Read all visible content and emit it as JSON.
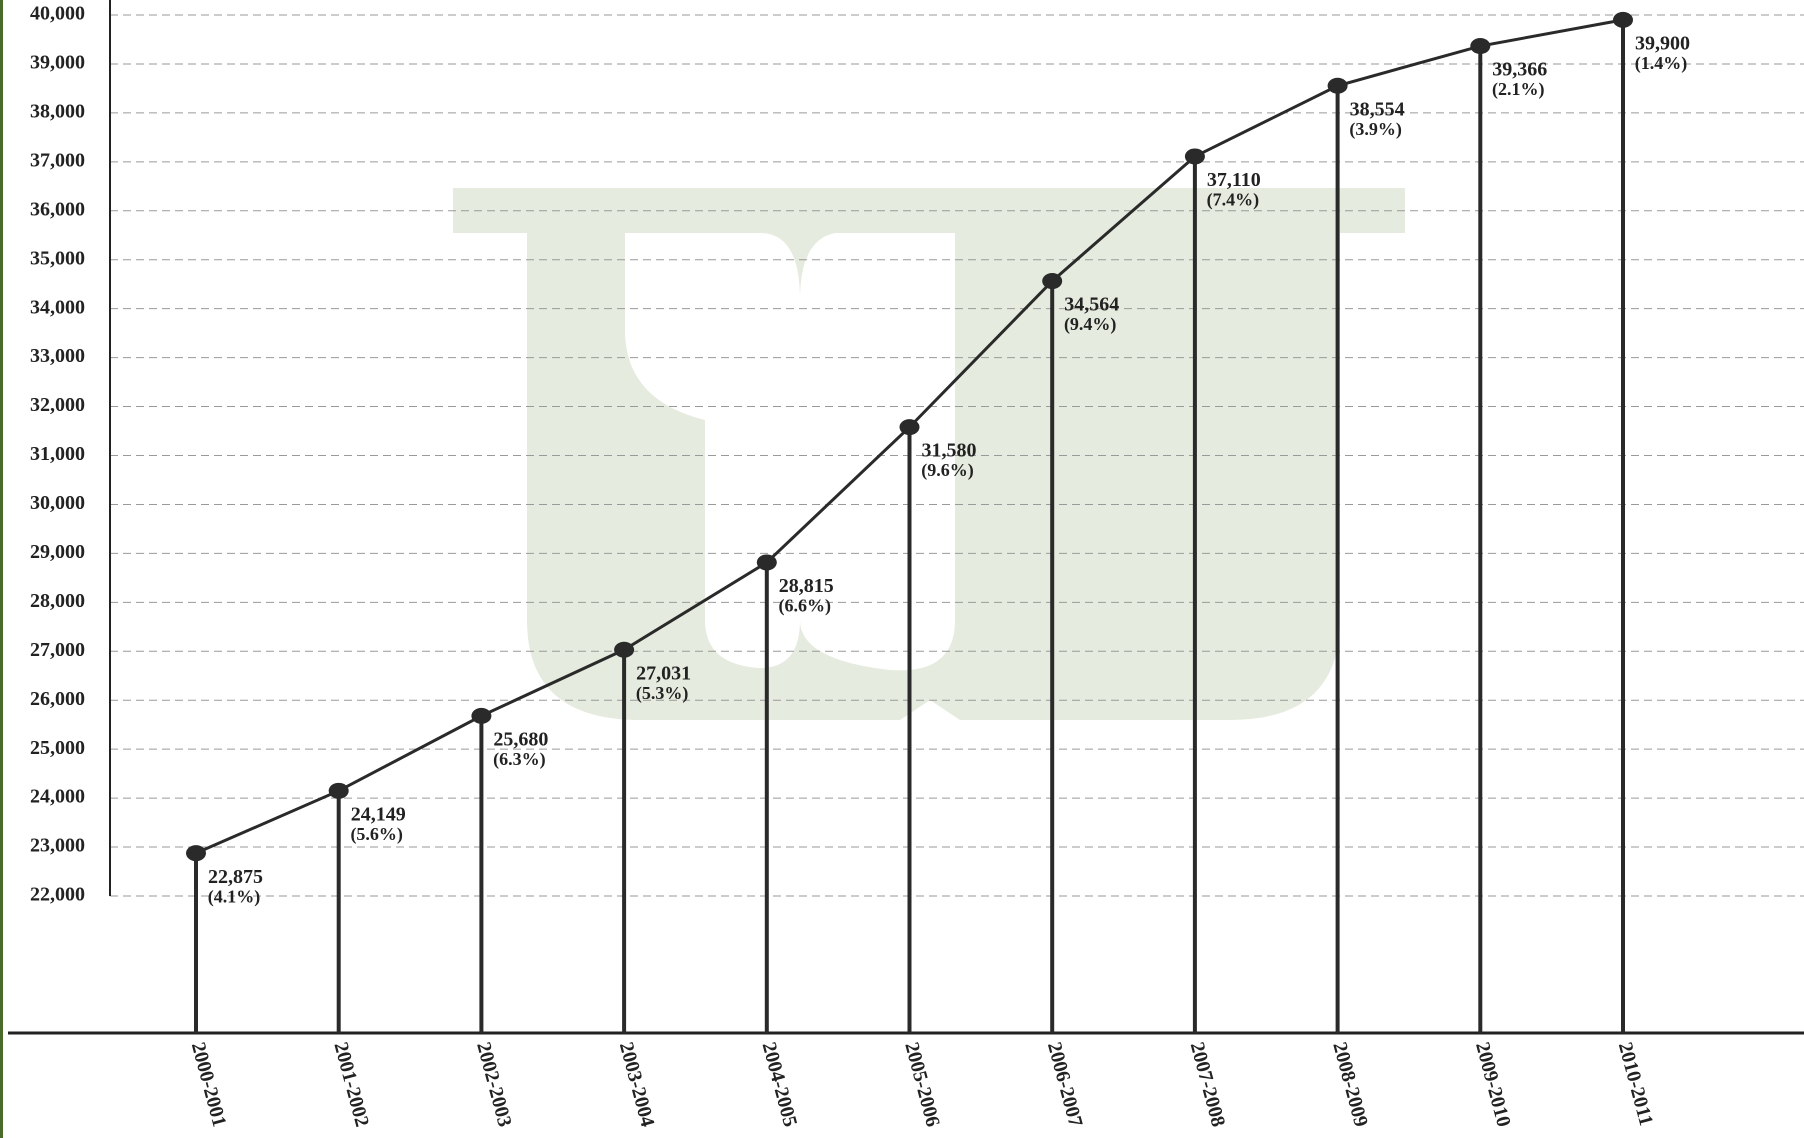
{
  "chart_data": {
    "type": "line",
    "categories": [
      "2000-2001",
      "2001-2002",
      "2002-2003",
      "2003-2004",
      "2004-2005",
      "2005-2006",
      "2006-2007",
      "2007-2008",
      "2008-2009",
      "2009-2010",
      "2010-2011"
    ],
    "values": [
      22875,
      24149,
      25680,
      27031,
      28815,
      31580,
      34564,
      37110,
      38554,
      39366,
      39900
    ],
    "value_labels": [
      "22,875",
      "24,149",
      "25,680",
      "27,031",
      "28,815",
      "31,580",
      "34,564",
      "37,110",
      "38,554",
      "39,366",
      "39,900"
    ],
    "change_labels": [
      "(4.1%)",
      "(5.6%)",
      "(6.3%)",
      "(5.3%)",
      "(6.6%)",
      "(9.6%)",
      "(9.4%)",
      "(7.4%)",
      "(3.9%)",
      "(2.1%)",
      "(1.4%)"
    ],
    "color": "#2a2a2a",
    "ylim": [
      22000,
      40000
    ],
    "yticks": [
      {
        "value": 22000,
        "label": "22,000"
      },
      {
        "value": 23000,
        "label": "23,000"
      },
      {
        "value": 24000,
        "label": "24,000"
      },
      {
        "value": 25000,
        "label": "25,000"
      },
      {
        "value": 26000,
        "label": "26,000"
      },
      {
        "value": 27000,
        "label": "27,000"
      },
      {
        "value": 28000,
        "label": "28,000"
      },
      {
        "value": 29000,
        "label": "29,000"
      },
      {
        "value": 30000,
        "label": "30,000"
      },
      {
        "value": 31000,
        "label": "31,000"
      },
      {
        "value": 32000,
        "label": "32,000"
      },
      {
        "value": 33000,
        "label": "33,000"
      },
      {
        "value": 34000,
        "label": "34,000"
      },
      {
        "value": 35000,
        "label": "35,000"
      },
      {
        "value": 36000,
        "label": "36,000"
      },
      {
        "value": 37000,
        "label": "37,000"
      },
      {
        "value": 38000,
        "label": "38,000"
      },
      {
        "value": 39000,
        "label": "39,000"
      },
      {
        "value": 40000,
        "label": "40,000"
      }
    ],
    "grid": true
  }
}
